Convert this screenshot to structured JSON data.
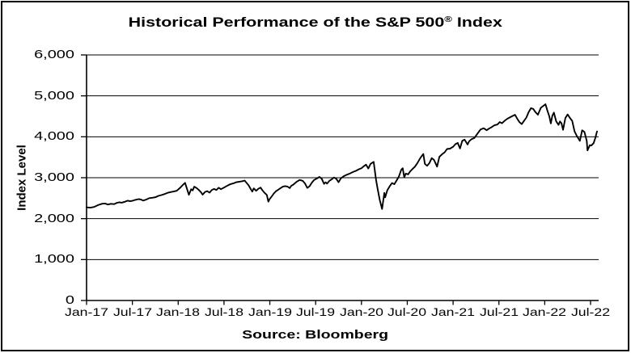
{
  "title": {
    "prefix": "Historical Performance of the S&P 500",
    "registered": "®",
    "suffix": " Index"
  },
  "chart_data": {
    "type": "line",
    "title": "Historical Performance of the S&P 500® Index",
    "xlabel": "",
    "ylabel": "Index Level",
    "source_note": "Source: Bloomberg",
    "legend": "none",
    "grid": "horizontal gridlines every 1000",
    "line_color": "#000000",
    "background_color": "#ffffff",
    "ylim": [
      0,
      6000
    ],
    "y_tick_labels": [
      "0",
      "1,000",
      "2,000",
      "3,000",
      "4,000",
      "5,000",
      "6,000"
    ],
    "x_tick_labels": [
      "Jan-17",
      "Jul-17",
      "Jan-18",
      "Jul-18",
      "Jan-19",
      "Jul-19",
      "Jan-20",
      "Jul-20",
      "Jan-21",
      "Jul-21",
      "Jan-22",
      "Jul-22"
    ],
    "x_tick_positions_months": [
      0,
      6,
      12,
      18,
      24,
      30,
      36,
      42,
      48,
      54,
      60,
      66
    ],
    "x_unit": "months since Jan-2017 (series extends to ~Aug-2022)",
    "xlim_months": [
      0,
      67.1
    ],
    "series": [
      {
        "name": "S&P 500 Index Level",
        "points": [
          [
            0,
            2275
          ],
          [
            0.5,
            2268
          ],
          [
            1,
            2285
          ],
          [
            1.5,
            2330
          ],
          [
            2,
            2363
          ],
          [
            2.4,
            2370
          ],
          [
            2.8,
            2345
          ],
          [
            3.2,
            2362
          ],
          [
            3.6,
            2355
          ],
          [
            4,
            2388
          ],
          [
            4.3,
            2400
          ],
          [
            4.6,
            2390
          ],
          [
            5,
            2412
          ],
          [
            5.4,
            2440
          ],
          [
            5.7,
            2425
          ],
          [
            6,
            2435
          ],
          [
            6.4,
            2460
          ],
          [
            6.8,
            2477
          ],
          [
            7.1,
            2470
          ],
          [
            7.4,
            2442
          ],
          [
            7.8,
            2465
          ],
          [
            8.2,
            2500
          ],
          [
            8.6,
            2510
          ],
          [
            9,
            2522
          ],
          [
            9.4,
            2555
          ],
          [
            9.8,
            2575
          ],
          [
            10.2,
            2600
          ],
          [
            10.6,
            2630
          ],
          [
            11,
            2648
          ],
          [
            11.4,
            2662
          ],
          [
            11.8,
            2680
          ],
          [
            12.2,
            2745
          ],
          [
            12.7,
            2840
          ],
          [
            12.9,
            2873
          ],
          [
            13.2,
            2700
          ],
          [
            13.4,
            2581
          ],
          [
            13.7,
            2720
          ],
          [
            13.9,
            2690
          ],
          [
            14.1,
            2780
          ],
          [
            14.4,
            2750
          ],
          [
            14.7,
            2700
          ],
          [
            15,
            2640
          ],
          [
            15.2,
            2585
          ],
          [
            15.5,
            2650
          ],
          [
            15.8,
            2672
          ],
          [
            16.1,
            2635
          ],
          [
            16.4,
            2700
          ],
          [
            16.7,
            2725
          ],
          [
            17,
            2700
          ],
          [
            17.3,
            2755
          ],
          [
            17.6,
            2720
          ],
          [
            18,
            2760
          ],
          [
            18.4,
            2800
          ],
          [
            18.8,
            2840
          ],
          [
            19.2,
            2860
          ],
          [
            19.6,
            2890
          ],
          [
            20,
            2902
          ],
          [
            20.4,
            2915
          ],
          [
            20.7,
            2930
          ],
          [
            20.9,
            2885
          ],
          [
            21.2,
            2820
          ],
          [
            21.4,
            2755
          ],
          [
            21.7,
            2660
          ],
          [
            21.9,
            2740
          ],
          [
            22.2,
            2680
          ],
          [
            22.5,
            2730
          ],
          [
            22.8,
            2760
          ],
          [
            23,
            2700
          ],
          [
            23.3,
            2633
          ],
          [
            23.6,
            2580
          ],
          [
            23.8,
            2416
          ],
          [
            24,
            2485
          ],
          [
            24.2,
            2530
          ],
          [
            24.5,
            2610
          ],
          [
            24.8,
            2670
          ],
          [
            25.1,
            2705
          ],
          [
            25.4,
            2745
          ],
          [
            25.7,
            2780
          ],
          [
            26,
            2795
          ],
          [
            26.3,
            2785
          ],
          [
            26.6,
            2745
          ],
          [
            26.8,
            2800
          ],
          [
            27.1,
            2835
          ],
          [
            27.5,
            2900
          ],
          [
            27.9,
            2945
          ],
          [
            28.3,
            2925
          ],
          [
            28.6,
            2860
          ],
          [
            28.9,
            2752
          ],
          [
            29.2,
            2790
          ],
          [
            29.5,
            2880
          ],
          [
            29.8,
            2945
          ],
          [
            30.1,
            2975
          ],
          [
            30.5,
            3020
          ],
          [
            30.8,
            2975
          ],
          [
            31.1,
            2850
          ],
          [
            31.3,
            2890
          ],
          [
            31.5,
            2855
          ],
          [
            31.8,
            2925
          ],
          [
            32.1,
            2960
          ],
          [
            32.4,
            3005
          ],
          [
            32.7,
            2975
          ],
          [
            33,
            2890
          ],
          [
            33.3,
            2985
          ],
          [
            33.7,
            3040
          ],
          [
            34.1,
            3075
          ],
          [
            34.5,
            3105
          ],
          [
            34.9,
            3140
          ],
          [
            35.3,
            3170
          ],
          [
            35.7,
            3210
          ],
          [
            36,
            3231
          ],
          [
            36.3,
            3280
          ],
          [
            36.6,
            3320
          ],
          [
            36.9,
            3225
          ],
          [
            37.2,
            3340
          ],
          [
            37.6,
            3386
          ],
          [
            37.9,
            2954
          ],
          [
            38.1,
            2750
          ],
          [
            38.4,
            2450
          ],
          [
            38.7,
            2237
          ],
          [
            39,
            2630
          ],
          [
            39.1,
            2520
          ],
          [
            39.4,
            2700
          ],
          [
            39.7,
            2790
          ],
          [
            40,
            2870
          ],
          [
            40.3,
            2840
          ],
          [
            40.6,
            2930
          ],
          [
            40.9,
            3030
          ],
          [
            41.2,
            3190
          ],
          [
            41.4,
            3232
          ],
          [
            41.6,
            3010
          ],
          [
            41.8,
            3100
          ],
          [
            42.1,
            3080
          ],
          [
            42.4,
            3160
          ],
          [
            42.7,
            3215
          ],
          [
            43,
            3271
          ],
          [
            43.3,
            3350
          ],
          [
            43.7,
            3480
          ],
          [
            44.1,
            3580
          ],
          [
            44.3,
            3340
          ],
          [
            44.6,
            3290
          ],
          [
            44.9,
            3360
          ],
          [
            45.2,
            3480
          ],
          [
            45.5,
            3435
          ],
          [
            45.9,
            3270
          ],
          [
            46.2,
            3510
          ],
          [
            46.6,
            3580
          ],
          [
            46.9,
            3622
          ],
          [
            47.2,
            3700
          ],
          [
            47.6,
            3710
          ],
          [
            48,
            3756
          ],
          [
            48.3,
            3820
          ],
          [
            48.6,
            3850
          ],
          [
            48.9,
            3714
          ],
          [
            49.2,
            3900
          ],
          [
            49.5,
            3930
          ],
          [
            49.9,
            3811
          ],
          [
            50.1,
            3890
          ],
          [
            50.4,
            3940
          ],
          [
            50.8,
            3973
          ],
          [
            51.2,
            4080
          ],
          [
            51.6,
            4180
          ],
          [
            52,
            4210
          ],
          [
            52.4,
            4160
          ],
          [
            52.7,
            4200
          ],
          [
            53,
            4230
          ],
          [
            53.4,
            4280
          ],
          [
            53.8,
            4298
          ],
          [
            54.1,
            4360
          ],
          [
            54.4,
            4330
          ],
          [
            54.8,
            4400
          ],
          [
            55.1,
            4440
          ],
          [
            55.5,
            4480
          ],
          [
            55.9,
            4520
          ],
          [
            56.1,
            4537
          ],
          [
            56.4,
            4440
          ],
          [
            56.7,
            4355
          ],
          [
            57,
            4310
          ],
          [
            57.2,
            4365
          ],
          [
            57.6,
            4470
          ],
          [
            57.9,
            4605
          ],
          [
            58.2,
            4700
          ],
          [
            58.5,
            4680
          ],
          [
            58.8,
            4600
          ],
          [
            59.1,
            4540
          ],
          [
            59.5,
            4710
          ],
          [
            59.9,
            4766
          ],
          [
            60.1,
            4797
          ],
          [
            60.3,
            4670
          ],
          [
            60.6,
            4500
          ],
          [
            60.8,
            4327
          ],
          [
            61,
            4515
          ],
          [
            61.2,
            4590
          ],
          [
            61.5,
            4380
          ],
          [
            61.8,
            4290
          ],
          [
            62,
            4375
          ],
          [
            62.2,
            4330
          ],
          [
            62.4,
            4170
          ],
          [
            62.7,
            4460
          ],
          [
            63,
            4545
          ],
          [
            63.3,
            4460
          ],
          [
            63.6,
            4390
          ],
          [
            63.9,
            4132
          ],
          [
            64.2,
            4020
          ],
          [
            64.6,
            3900
          ],
          [
            64.9,
            4158
          ],
          [
            65.2,
            4120
          ],
          [
            65.5,
            3900
          ],
          [
            65.6,
            3667
          ],
          [
            65.9,
            3795
          ],
          [
            66.1,
            3785
          ],
          [
            66.4,
            3845
          ],
          [
            66.6,
            3960
          ],
          [
            66.85,
            4130
          ]
        ]
      }
    ]
  }
}
